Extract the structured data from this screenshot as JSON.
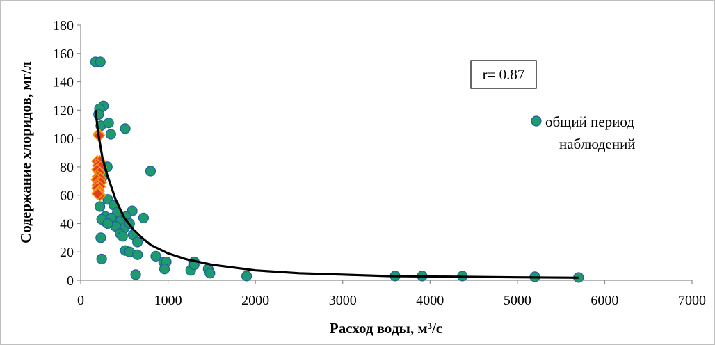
{
  "chart_data": {
    "type": "scatter",
    "title": "",
    "xlabel": "Расход воды, м³/с",
    "ylabel": "Содержание хлоридов, мг/л",
    "xlim": [
      0,
      7000
    ],
    "ylim": [
      0,
      180
    ],
    "x_ticks": [
      "0",
      "1000",
      "2000",
      "3000",
      "4000",
      "5000",
      "6000",
      "7000"
    ],
    "y_ticks": [
      "0",
      "20",
      "40",
      "60",
      "80",
      "100",
      "120",
      "140",
      "160",
      "180"
    ],
    "grid": false,
    "legend_position": "right",
    "annotation": "r= 0.87",
    "colors": {
      "points": "#1f9a6e",
      "point_edge": "#1f5fa0",
      "diamonds": "#e53a1e",
      "diamond_edge": "#f29a14",
      "trend": "#000000"
    },
    "series": [
      {
        "name": "общий период наблюдений",
        "marker": "circle",
        "points": [
          [
            170,
            154
          ],
          [
            225,
            154
          ],
          [
            260,
            123
          ],
          [
            215,
            121
          ],
          [
            205,
            117
          ],
          [
            230,
            109
          ],
          [
            320,
            111
          ],
          [
            510,
            107
          ],
          [
            345,
            103
          ],
          [
            800,
            77
          ],
          [
            305,
            80
          ],
          [
            250,
            73
          ],
          [
            310,
            57
          ],
          [
            220,
            52
          ],
          [
            380,
            53
          ],
          [
            420,
            48
          ],
          [
            590,
            49
          ],
          [
            280,
            45
          ],
          [
            290,
            41
          ],
          [
            240,
            43
          ],
          [
            350,
            44
          ],
          [
            460,
            42
          ],
          [
            720,
            44
          ],
          [
            520,
            45
          ],
          [
            500,
            37
          ],
          [
            400,
            38
          ],
          [
            560,
            40
          ],
          [
            310,
            40
          ],
          [
            600,
            32
          ],
          [
            450,
            33
          ],
          [
            480,
            31
          ],
          [
            650,
            27
          ],
          [
            510,
            21
          ],
          [
            560,
            20
          ],
          [
            650,
            18
          ],
          [
            230,
            30
          ],
          [
            240,
            15
          ],
          [
            630,
            4
          ],
          [
            860,
            17
          ],
          [
            950,
            13
          ],
          [
            980,
            13
          ],
          [
            960,
            8
          ],
          [
            1260,
            7
          ],
          [
            1300,
            13
          ],
          [
            1300,
            11
          ],
          [
            1460,
            8
          ],
          [
            1480,
            5
          ],
          [
            1900,
            3
          ],
          [
            3600,
            3
          ],
          [
            3910,
            3
          ],
          [
            4370,
            3
          ],
          [
            5200,
            2.5
          ],
          [
            5700,
            2
          ]
        ]
      },
      {
        "name": "",
        "marker": "diamond",
        "points": [
          [
            205,
            103
          ],
          [
            210,
            102
          ],
          [
            190,
            84
          ],
          [
            220,
            84
          ],
          [
            200,
            81
          ],
          [
            230,
            80
          ],
          [
            190,
            78
          ],
          [
            215,
            76
          ],
          [
            195,
            73
          ],
          [
            225,
            72
          ],
          [
            185,
            71
          ],
          [
            205,
            69
          ],
          [
            230,
            69
          ],
          [
            195,
            67
          ],
          [
            220,
            66
          ],
          [
            190,
            65
          ],
          [
            210,
            63
          ],
          [
            200,
            62
          ],
          [
            220,
            60
          ],
          [
            195,
            61
          ]
        ]
      }
    ],
    "trendline": {
      "type": "power",
      "points": [
        [
          170,
          120
        ],
        [
          200,
          104
        ],
        [
          250,
          86
        ],
        [
          300,
          75
        ],
        [
          400,
          57
        ],
        [
          500,
          44
        ],
        [
          600,
          36
        ],
        [
          700,
          30
        ],
        [
          800,
          25
        ],
        [
          1000,
          19
        ],
        [
          1200,
          15
        ],
        [
          1500,
          11
        ],
        [
          2000,
          7
        ],
        [
          2500,
          5
        ],
        [
          3000,
          4
        ],
        [
          3500,
          3
        ],
        [
          4000,
          2.7
        ],
        [
          5000,
          2.1
        ],
        [
          5700,
          1.8
        ]
      ]
    },
    "legend": {
      "entries": [
        "общий период",
        "наблюдений"
      ]
    }
  }
}
